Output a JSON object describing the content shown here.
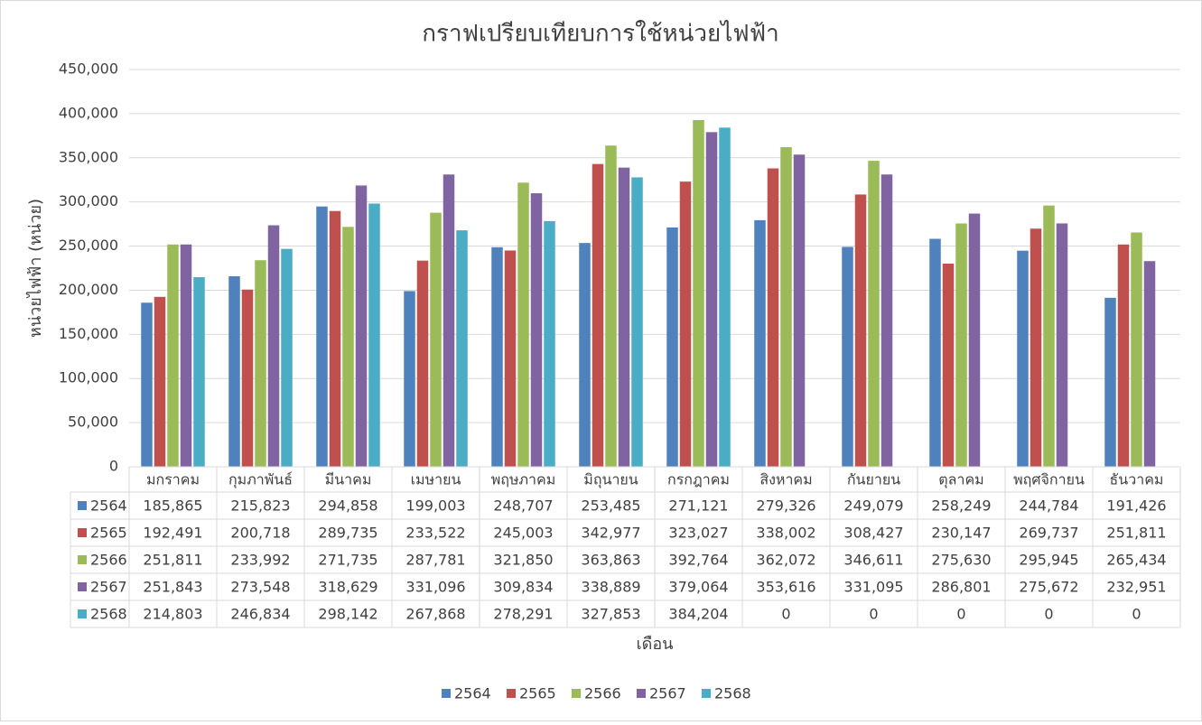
{
  "chart_data": {
    "type": "bar",
    "title": "กราฟเปรียบเทียบการใช้หน่วยไฟฟ้า",
    "y_label": "หน่วยไฟฟ้า (หน่วย)",
    "x_label": "เดือน",
    "categories": [
      "มกราคม",
      "กุมภาพันธ์",
      "มีนาคม",
      "เมษายน",
      "พฤษภาคม",
      "มิถุนายน",
      "กรกฎาคม",
      "สิงหาคม",
      "กันยายน",
      "ตุลาคม",
      "พฤศจิกายน",
      "ธันวาคม"
    ],
    "series": [
      {
        "name": "2564",
        "color": "#4f81bd",
        "values": [
          185865,
          215823,
          294858,
          199003,
          248707,
          253485,
          271121,
          279326,
          249079,
          258249,
          244784,
          191426
        ],
        "value_labels": [
          "185,865",
          "215,823",
          "294,858",
          "199,003",
          "248,707",
          "253,485",
          "271,121",
          "279,326",
          "249,079",
          "258,249",
          "244,784",
          "191,426"
        ]
      },
      {
        "name": "2565",
        "color": "#c0504d",
        "values": [
          192491,
          200718,
          289735,
          233522,
          245003,
          342977,
          323027,
          338002,
          308427,
          230147,
          269737,
          251811
        ],
        "value_labels": [
          "192,491",
          "200,718",
          "289,735",
          "233,522",
          "245,003",
          "342,977",
          "323,027",
          "338,002",
          "308,427",
          "230,147",
          "269,737",
          "251,811"
        ]
      },
      {
        "name": "2566",
        "color": "#9bbb59",
        "values": [
          251811,
          233992,
          271735,
          287781,
          321850,
          363863,
          392764,
          362072,
          346611,
          275630,
          295945,
          265434
        ],
        "value_labels": [
          "251,811",
          "233,992",
          "271,735",
          "287,781",
          "321,850",
          "363,863",
          "392,764",
          "362,072",
          "346,611",
          "275,630",
          "295,945",
          "265,434"
        ]
      },
      {
        "name": "2567",
        "color": "#8064a2",
        "values": [
          251843,
          273548,
          318629,
          331096,
          309834,
          338889,
          379064,
          353616,
          331095,
          286801,
          275672,
          232951
        ],
        "value_labels": [
          "251,843",
          "273,548",
          "318,629",
          "331,096",
          "309,834",
          "338,889",
          "379,064",
          "353,616",
          "331,095",
          "286,801",
          "275,672",
          "232,951"
        ]
      },
      {
        "name": "2568",
        "color": "#4bacc6",
        "values": [
          214803,
          246834,
          298142,
          267868,
          278291,
          327853,
          384204,
          0,
          0,
          0,
          0,
          0
        ],
        "value_labels": [
          "214,803",
          "246,834",
          "298,142",
          "267,868",
          "278,291",
          "327,853",
          "384,204",
          "0",
          "0",
          "0",
          "0",
          "0"
        ]
      }
    ],
    "ylim": [
      0,
      450000
    ],
    "yticks": [
      0,
      {
        "value": 50000,
        "label": "50,000"
      },
      {
        "value": 100000,
        "label": "100,000"
      },
      {
        "value": 150000,
        "label": "150,000"
      },
      {
        "value": 200000,
        "label": "200,000"
      },
      {
        "value": 250000,
        "label": "250,000"
      },
      {
        "value": 300000,
        "label": "300,000"
      },
      {
        "value": 350000,
        "label": "350,000"
      },
      {
        "value": 400000,
        "label": "400,000"
      },
      {
        "value": 450000,
        "label": "450,000"
      }
    ],
    "grid": true,
    "legend": "bottom"
  }
}
